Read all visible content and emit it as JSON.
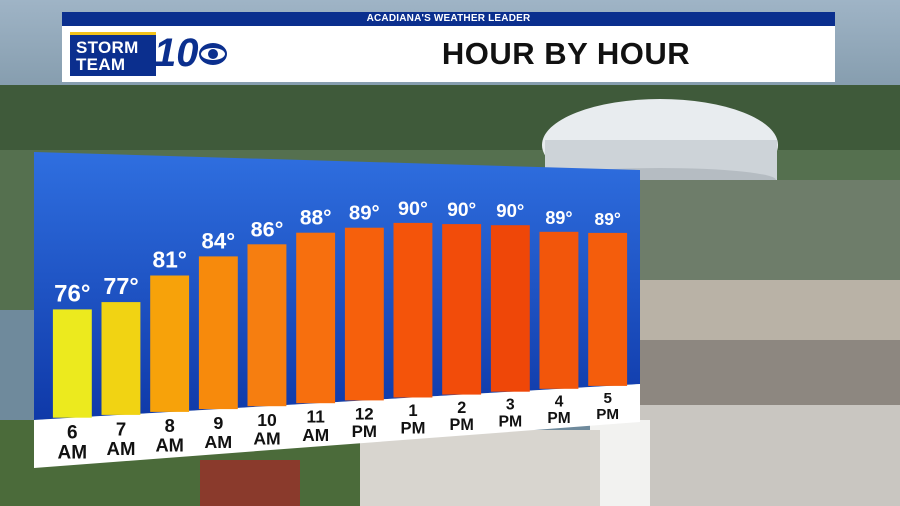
{
  "banner": {
    "tagline": "ACADIANA'S WEATHER LEADER",
    "title": "HOUR BY HOUR"
  },
  "logo": {
    "line1": "STORM",
    "line2": "TEAM",
    "number": "10"
  },
  "colors": {
    "brand_blue": "#0b2f8e",
    "brand_yellow": "#f2c21a",
    "panel_blue_top": "#2f6fe0",
    "panel_blue_bottom": "#0f39a8"
  },
  "chart_data": {
    "type": "bar",
    "categories": [
      [
        "6",
        "AM"
      ],
      [
        "7",
        "AM"
      ],
      [
        "8",
        "AM"
      ],
      [
        "9",
        "AM"
      ],
      [
        "10",
        "AM"
      ],
      [
        "11",
        "AM"
      ],
      [
        "12",
        "PM"
      ],
      [
        "1",
        "PM"
      ],
      [
        "2",
        "PM"
      ],
      [
        "3",
        "PM"
      ],
      [
        "4",
        "PM"
      ],
      [
        "5",
        "PM"
      ]
    ],
    "values": [
      76,
      77,
      81,
      84,
      86,
      88,
      89,
      90,
      90,
      90,
      89,
      89
    ],
    "value_labels": [
      "76°",
      "77°",
      "81°",
      "84°",
      "86°",
      "88°",
      "89°",
      "90°",
      "90°",
      "90°",
      "89°",
      "89°"
    ],
    "bar_colors": [
      "#ecea1e",
      "#f1d313",
      "#f7a20a",
      "#f78a0c",
      "#f67e10",
      "#f76f0e",
      "#f6600c",
      "#f4540a",
      "#f24c0a",
      "#ef4708",
      "#f2560b",
      "#f45d0c"
    ],
    "ylim": [
      60,
      92
    ]
  }
}
